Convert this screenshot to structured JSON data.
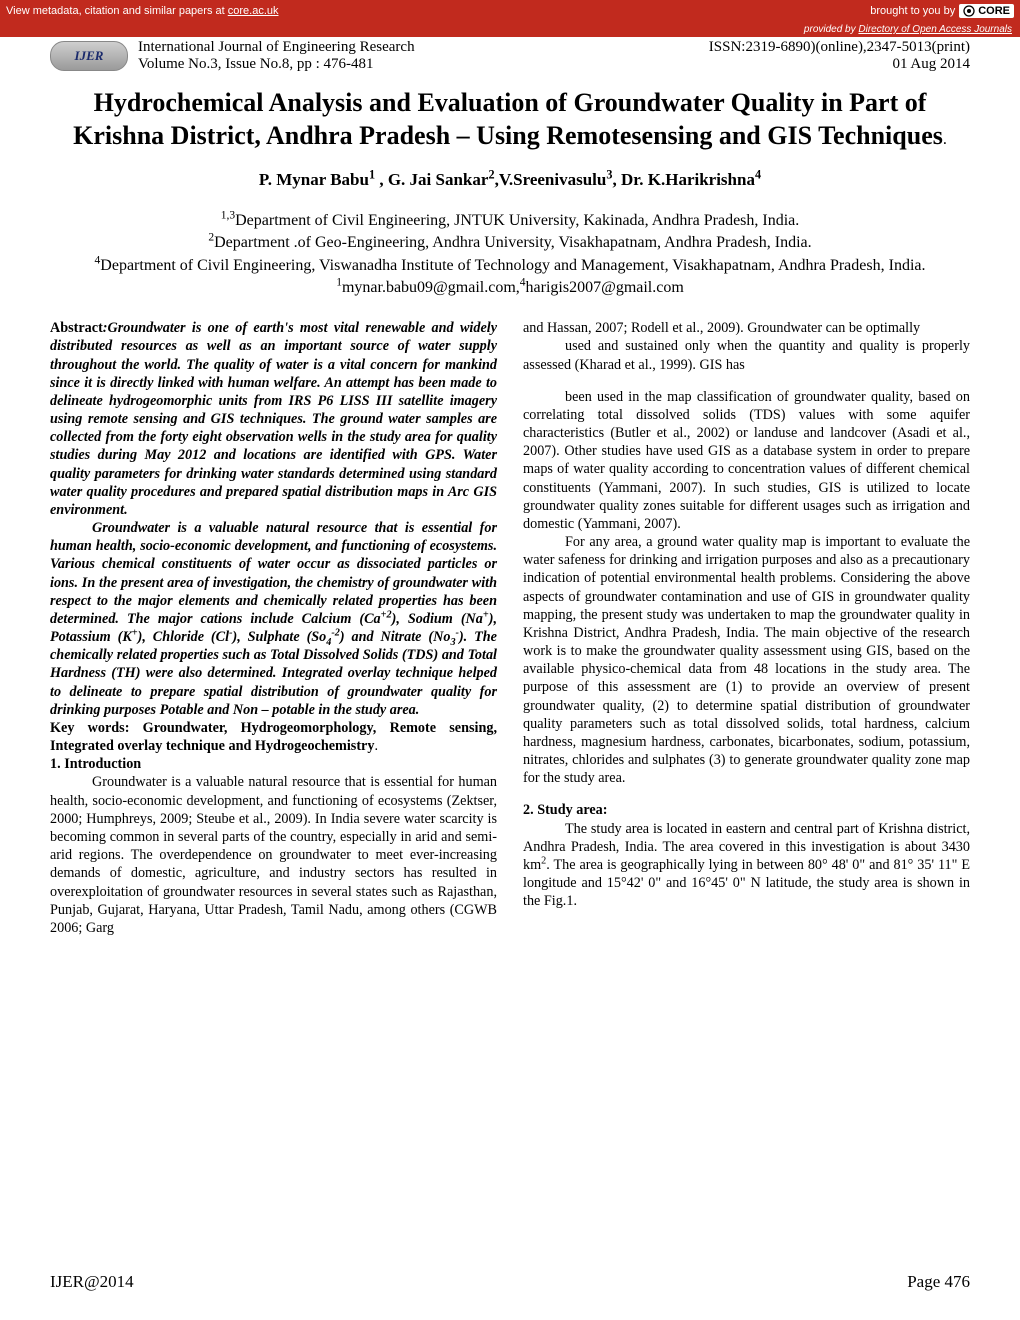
{
  "core_banner": {
    "left_text": "View metadata, citation and similar papers at ",
    "left_link": "core.ac.uk",
    "right_prefix": "brought to you by ",
    "right_logo": "CORE",
    "provided_prefix": "provided by ",
    "provided_link": "Directory of Open Access Journals"
  },
  "header": {
    "badge": "IJER",
    "journal": "International Journal of Engineering Research",
    "issn": "ISSN:2319-6890)(online),2347-5013(print)",
    "volume": "Volume No.3, Issue No.8, pp : 476-481",
    "date": "01 Aug 2014"
  },
  "title": "Hydrochemical Analysis and Evaluation of Groundwater Quality in Part of Krishna District, Andhra Pradesh – Using Remotesensing and GIS Techniques",
  "authors_html": "P. Mynar Babu<sup>1</sup> , G. Jai Sankar<sup>2</sup>,V.Sreenivasulu<sup>3</sup>, Dr. K.Harikrishna<sup>4</sup>",
  "affiliations_html": "<sup>1,3</sup>Department of Civil Engineering, JNTUK University, Kakinada, Andhra Pradesh, India.<br><sup>2</sup>Department .of Geo-Engineering, Andhra University, Visakhapatnam, Andhra Pradesh, India.<br><sup>4</sup>Department of Civil Engineering, Viswanadha Institute of Technology and Management, Visakhapatnam, Andhra Pradesh, India.",
  "emails_html": "<sup>1</sup>mynar.babu09@gmail.com,<sup>4</sup>harigis2007@gmail.com",
  "left_col": {
    "abstract_label": "Abstract",
    "abstract_html": ":Groundwater is one of earth's most vital renewable and widely distributed resources as well as an important source of water supply throughout the world. The quality of water is a vital concern for mankind since it is directly linked with human welfare. An attempt has been made to delineate hydrogeomorphic units from IRS P6 LISS III satellite imagery using remote sensing and GIS techniques. The ground water samples are collected from the forty eight observation wells in the study area for quality studies during May 2012 and locations are identified with GPS. Water quality parameters for drinking water standards determined using standard water quality procedures and prepared spatial distribution maps in Arc GIS environment.",
    "abstract_p2_html": "Groundwater is a valuable natural resource that is essential for human health, socio-economic development, and functioning of ecosystems.  Various chemical constituents of water occur as dissociated particles or ions. In the present area of investigation, the chemistry of groundwater with respect to the major elements and chemically related properties has been determined. The major cations include Calcium (Ca<sup>+2</sup>), Sodium (Na<sup>+</sup>), Potassium (K<sup>+</sup>), Chloride (Cl<sup>-</sup>), Sulphate (So<sub>4</sub><sup>-2</sup>) and Nitrate (No<sub>3</sub><sup>-</sup>). The chemically related properties such as Total Dissolved Solids (TDS) and Total Hardness (TH) were also determined. Integrated overlay technique helped to delineate to prepare spatial distribution of groundwater quality for drinking purposes Potable and Non – potable in the study area.",
    "keywords_html": "Key words: Groundwater, Hydrogeomorphology, Remote sensing, Integrated overlay technique and Hydrogeochemistry",
    "intro_head": "1.   Introduction",
    "intro_body": "Groundwater is a valuable natural resource that is essential for human health, socio-economic development, and functioning of ecosystems (Zektser, 2000; Humphreys, 2009; Steube et al., 2009). In India severe water scarcity is becoming common in several parts of the country, especially in arid and semi-arid regions. The overdependence on groundwater to meet ever-increasing demands of domestic, agriculture, and industry sectors has resulted in overexploitation of groundwater resources in several states such as Rajasthan, Punjab, Gujarat, Haryana, Uttar Pradesh, Tamil Nadu, among others (CGWB 2006; Garg"
  },
  "right_col": {
    "p1": "and Hassan, 2007; Rodell et al., 2009). Groundwater can be optimally",
    "p2": "used and sustained only when the quantity and quality is properly assessed (Kharad et al., 1999). GIS has",
    "p3": "been used in the map classification of groundwater quality, based on correlating total dissolved solids (TDS) values with some aquifer characteristics (Butler et al., 2002) or landuse and landcover (Asadi et al., 2007). Other studies have used GIS as a database system in order to prepare maps of water quality according to concentration values of different chemical constituents (Yammani, 2007). In such studies, GIS is utilized to locate groundwater quality zones suitable for different usages such as irrigation and domestic (Yammani, 2007).",
    "p4": "For any area, a ground water quality map is important to evaluate the water safeness for drinking and irrigation purposes and also as a precautionary indication of potential environmental health problems. Considering the above aspects of groundwater contamination and use of GIS in groundwater quality mapping, the present study was undertaken to map the groundwater quality in Krishna District, Andhra Pradesh, India. The main objective of the research work is to make the groundwater quality assessment using GIS, based on the available physico-chemical data from 48 locations in the study area. The purpose of this assessment are (1) to provide an overview of present groundwater quality, (2) to determine spatial distribution of groundwater quality parameters such as total dissolved solids, total hardness, calcium hardness, magnesium hardness, carbonates, bicarbonates, sodium, potassium, nitrates, chlorides and sulphates (3) to generate groundwater quality zone map for the study area.",
    "study_head": "2.   Study area:",
    "study_body_html": "The study area is located in eastern and central part of Krishna district, Andhra Pradesh, India. The area covered in this investigation is about 3430 km<sup>2</sup>. The area is geographically lying in between 80° 48' 0\" and 81° 35' 11\" E longitude and 15°42' 0\" and 16°45' 0\" N latitude, the study area is shown in the Fig.1."
  },
  "footer": {
    "left": "IJER@2014",
    "right": "Page 476"
  }
}
